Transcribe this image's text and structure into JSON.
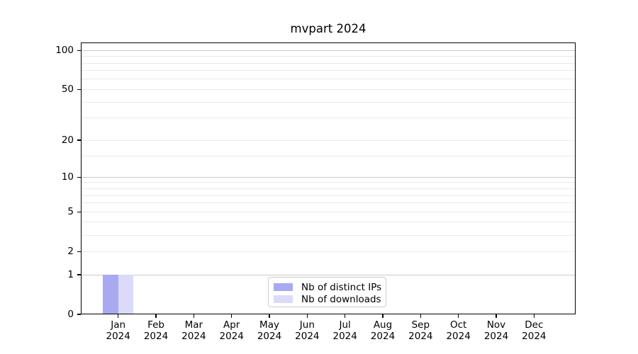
{
  "chart_data": {
    "type": "bar",
    "title": "mvpart 2024",
    "x_categories": [
      "Jan",
      "Feb",
      "Mar",
      "Apr",
      "May",
      "Jun",
      "Jul",
      "Aug",
      "Sep",
      "Oct",
      "Nov",
      "Dec"
    ],
    "x_year": "2024",
    "series": [
      {
        "name": "Nb of distinct IPs",
        "color": "#a9a9f2",
        "values": [
          1,
          0,
          0,
          0,
          0,
          0,
          0,
          0,
          0,
          0,
          0,
          0
        ]
      },
      {
        "name": "Nb of downloads",
        "color": "#dbdbf9",
        "values": [
          1,
          0,
          0,
          0,
          0,
          0,
          0,
          0,
          0,
          0,
          0,
          0
        ]
      }
    ],
    "y_axis": {
      "scale": "log10(1+y)",
      "tick_labels": [
        0,
        1,
        2,
        5,
        10,
        20,
        50,
        100
      ],
      "major_gridlines": [
        1,
        10,
        100
      ],
      "minor_gridlines": [
        2,
        3,
        4,
        5,
        6,
        7,
        8,
        9,
        15,
        20,
        30,
        40,
        50,
        60,
        70,
        80,
        90
      ],
      "max": 115,
      "grid_on": true
    },
    "legend": {
      "position": "lower-center",
      "entries": [
        "Nb of distinct IPs",
        "Nb of downloads"
      ]
    },
    "colors": {
      "major_grid": "#c9c9c9",
      "minor_grid": "#e9e9e9",
      "axis": "#000000",
      "legend_border": "#cccccc",
      "background": "#ffffff"
    }
  }
}
